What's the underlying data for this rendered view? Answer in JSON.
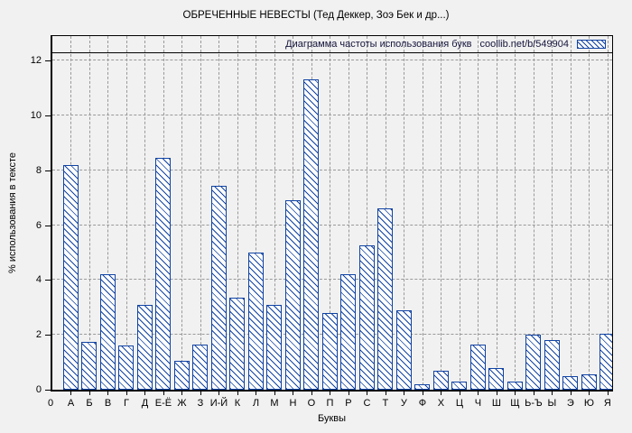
{
  "chart_data": {
    "type": "bar",
    "title": "ОБРЕЧЕННЫЕ НЕВЕСТЫ (Тед Деккер, Зоэ Бек и др...)",
    "legend_label": "Диаграмма частоты использования букв",
    "legend_link": "coollib.net/b/549904",
    "xlabel": "Буквы",
    "ylabel": "% использования в тексте",
    "origin_label": "0",
    "ylim": [
      0,
      13
    ],
    "yticks": [
      0,
      2,
      4,
      6,
      8,
      10,
      12
    ],
    "grid": true,
    "legend_position": "top-band-right",
    "categories": [
      "А",
      "Б",
      "В",
      "Г",
      "Д",
      "Е-Ё",
      "Ж",
      "З",
      "И-Й",
      "К",
      "Л",
      "М",
      "Н",
      "О",
      "П",
      "Р",
      "С",
      "Т",
      "У",
      "Ф",
      "Х",
      "Ц",
      "Ч",
      "Ш",
      "Щ",
      "Ь-Ъ",
      "Ы",
      "Э",
      "Ю",
      "Я"
    ],
    "values": [
      8.2,
      1.75,
      4.2,
      1.6,
      3.1,
      8.45,
      1.05,
      1.65,
      7.45,
      3.35,
      5.0,
      3.1,
      6.9,
      11.3,
      2.8,
      4.2,
      5.25,
      6.6,
      2.9,
      0.2,
      0.7,
      0.3,
      1.65,
      0.8,
      0.3,
      2.0,
      1.8,
      0.5,
      0.55,
      2.05
    ],
    "colors": {
      "bar": "#1143a3",
      "bar_fill": "#ffffff",
      "grid": "#999999",
      "background": "#f1f1f1",
      "text": "#000000",
      "legend_text": "#14143c"
    }
  }
}
